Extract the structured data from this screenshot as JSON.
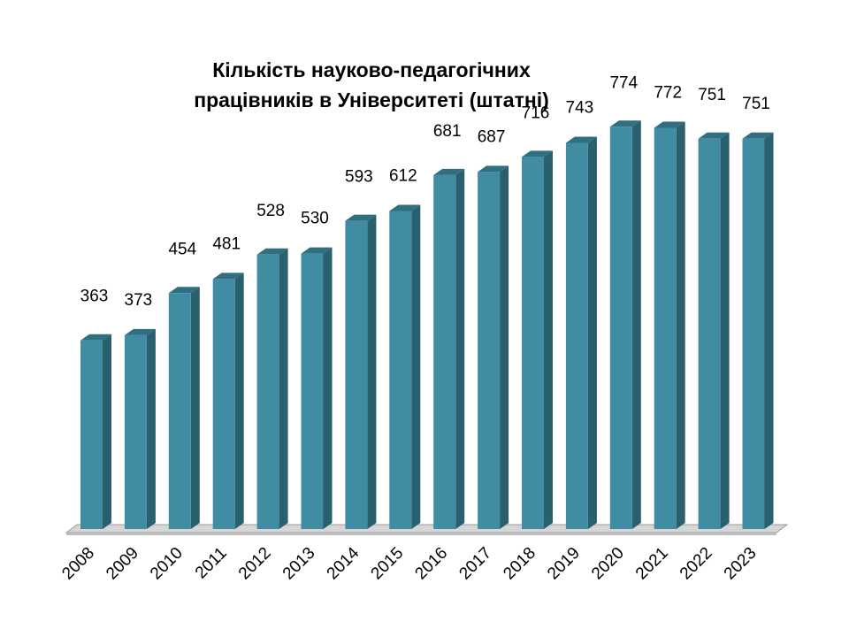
{
  "chart_data": {
    "type": "bar",
    "title_lines": [
      "Кількість науково-педагогічних",
      "працівників в Університеті (штатні)"
    ],
    "categories": [
      "2008",
      "2009",
      "2010",
      "2011",
      "2012",
      "2013",
      "2014",
      "2015",
      "2016",
      "2017",
      "2018",
      "2019",
      "2020",
      "2021",
      "2022",
      "2023"
    ],
    "values": [
      363,
      373,
      454,
      481,
      528,
      530,
      593,
      612,
      681,
      687,
      716,
      743,
      774,
      772,
      751,
      751
    ],
    "ylim": [
      0,
      800
    ],
    "grid": false,
    "legend": "none",
    "colors": {
      "bar_front": "#3f8ca3",
      "bar_side": "#2a5f6e",
      "bar_top": "#2f6f80",
      "floor_top": "#d6d6d6",
      "floor_front": "#bdbdbd",
      "floor_edge": "#9a9a9a"
    }
  }
}
